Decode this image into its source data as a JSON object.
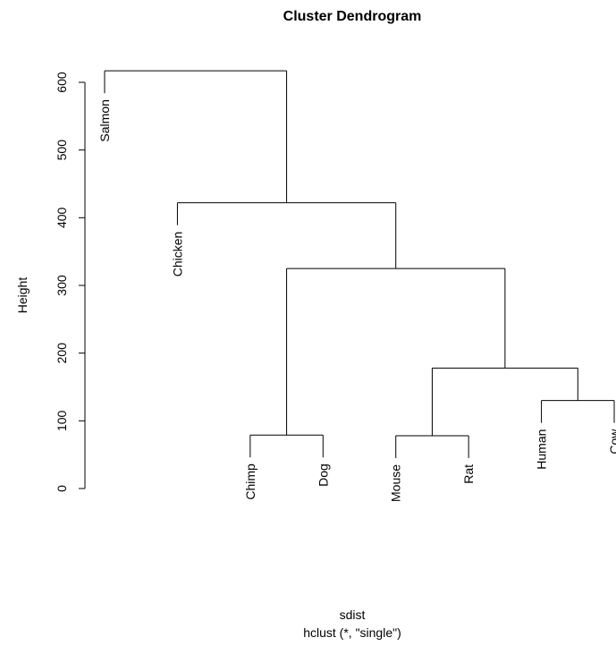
{
  "chart_data": {
    "type": "dendrogram",
    "title": "Cluster Dendrogram",
    "xlabel": "sdist",
    "sub": "hclust (*, \"single\")",
    "ylabel": "Height",
    "ylim": [
      0,
      620
    ],
    "yticks": [
      0,
      100,
      200,
      300,
      400,
      500,
      600
    ],
    "leaves": [
      "Salmon",
      "Chicken",
      "Chimp",
      "Dog",
      "Mouse",
      "Rat",
      "Human",
      "Cow"
    ],
    "merges": [
      {
        "id": "m1",
        "left": "Chimp",
        "right": "Dog",
        "height": 79
      },
      {
        "id": "m2",
        "left": "Mouse",
        "right": "Rat",
        "height": 78
      },
      {
        "id": "m3",
        "left": "Human",
        "right": "Cow",
        "height": 130
      },
      {
        "id": "m4",
        "left": "m2",
        "right": "m3",
        "height": 178
      },
      {
        "id": "m5",
        "left": "m1",
        "right": "m4",
        "height": 325
      },
      {
        "id": "m6",
        "left": "Chicken",
        "right": "m5",
        "height": 422
      },
      {
        "id": "m7",
        "left": "Salmon",
        "right": "m6",
        "height": 617
      }
    ],
    "leaf_hang": 33
  }
}
